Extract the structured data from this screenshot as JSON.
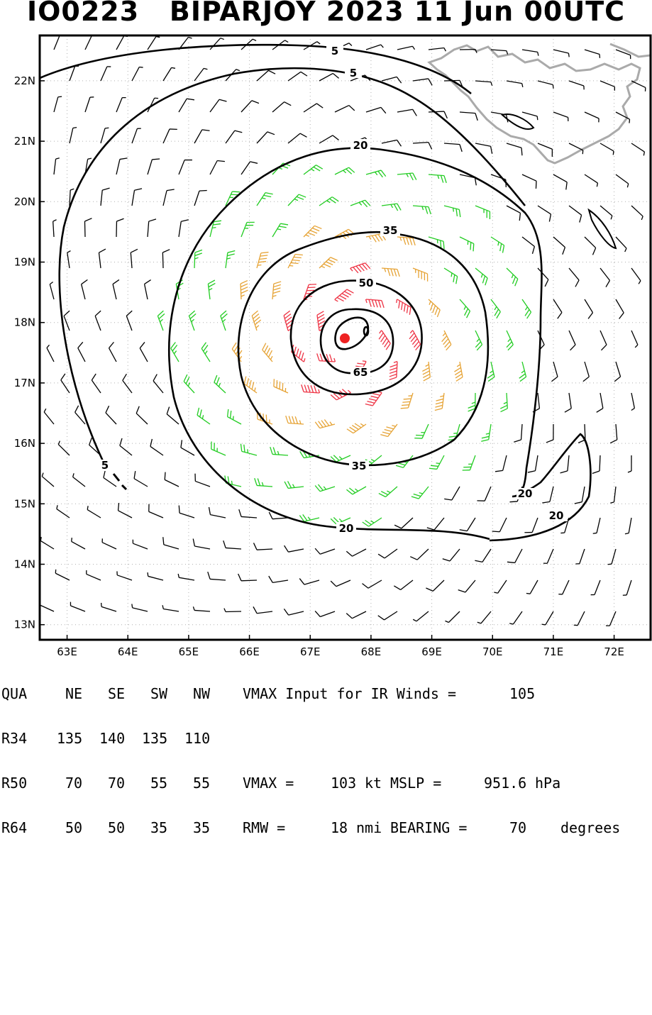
{
  "header": {
    "storm_id": "IO0223",
    "storm_name": "BIPARJOY",
    "year": "2023",
    "date": "11 Jun",
    "time": "00UTC"
  },
  "map": {
    "lon_ticks": [
      "63E",
      "64E",
      "65E",
      "66E",
      "67E",
      "68E",
      "69E",
      "70E",
      "71E",
      "72E"
    ],
    "lat_ticks": [
      "22N",
      "21N",
      "20N",
      "19N",
      "18N",
      "17N",
      "16N",
      "15N",
      "14N",
      "13N"
    ],
    "lon_range": [
      62.55,
      72.6
    ],
    "lat_range": [
      12.75,
      22.75
    ],
    "center": {
      "lat": 17.75,
      "lon": 67.6
    },
    "contours": [
      {
        "label": "5",
        "value": 5
      },
      {
        "label": "5",
        "value": 5
      },
      {
        "label": "20",
        "value": 20
      },
      {
        "label": "20",
        "value": 20
      },
      {
        "label": "20",
        "value": 20
      },
      {
        "label": "35",
        "value": 35
      },
      {
        "label": "35",
        "value": 35
      },
      {
        "label": "50",
        "value": 50
      },
      {
        "label": "65",
        "value": 65
      },
      {
        "label": "5",
        "value": 5
      }
    ],
    "colors": {
      "calm": "#000000",
      "tropical_storm": "#22cc22",
      "strong": "#e6a335",
      "severe": "#ee7722",
      "hurricane": "#ee3344",
      "center": "#ee2222",
      "coast": "#aaaaaa"
    }
  },
  "stats": {
    "header_row": [
      "QUA",
      "NE",
      "SE",
      "SW",
      "NW"
    ],
    "vmax_input_label": "VMAX Input for IR Winds =",
    "vmax_input_value": "105",
    "rows": [
      {
        "label": "R34",
        "values": [
          "135",
          "140",
          "135",
          "110"
        ]
      },
      {
        "label": "R50",
        "values": [
          "70",
          "70",
          "55",
          "55"
        ]
      },
      {
        "label": "R64",
        "values": [
          "50",
          "50",
          "35",
          "35"
        ]
      }
    ],
    "vmax_label": "VMAX =",
    "vmax_value": "103",
    "vmax_unit": "kt",
    "mslp_label": "MSLP =",
    "mslp_value": "951.6",
    "mslp_unit": "hPa",
    "rmw_label": "RMW =",
    "rmw_value": "18",
    "rmw_unit": "nmi",
    "bearing_label": "BEARING =",
    "bearing_value": "70",
    "bearing_unit": "degrees"
  }
}
